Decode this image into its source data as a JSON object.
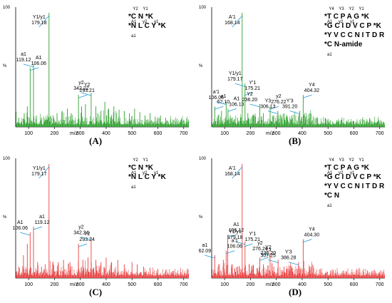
{
  "chart_data": [
    {
      "type": "line",
      "panel_label": "(A)",
      "color": "#2ea02e",
      "xlabel": "m/z",
      "ylabel": "%",
      "xlim": [
        50,
        720
      ],
      "ylim": [
        0,
        100
      ],
      "xticks": [
        "100",
        "200",
        "300",
        "400",
        "500",
        "600",
        "700"
      ],
      "corner_text": "100",
      "sequence_lines": [
        "*C N *K",
        "*N L C Y *K"
      ],
      "ion_labels_top": [
        "Y2",
        "Y1"
      ],
      "ion_labels_mid": [
        "A1",
        "y2",
        "y1"
      ],
      "ion_labels_bottom": [
        "a1"
      ],
      "peaks": [
        [
          62,
          8
        ],
        [
          83,
          12
        ],
        [
          95,
          18
        ],
        [
          106,
          52
        ],
        [
          119,
          55
        ],
        [
          130,
          10
        ],
        [
          150,
          8
        ],
        [
          164,
          6
        ],
        [
          179,
          100
        ],
        [
          195,
          10
        ],
        [
          210,
          12
        ],
        [
          230,
          14
        ],
        [
          250,
          16
        ],
        [
          265,
          12
        ],
        [
          293,
          28
        ],
        [
          305,
          18
        ],
        [
          320,
          20
        ],
        [
          342,
          30
        ],
        [
          360,
          18
        ],
        [
          380,
          14
        ],
        [
          395,
          22
        ],
        [
          410,
          16
        ],
        [
          430,
          18
        ],
        [
          450,
          15
        ],
        [
          470,
          14
        ],
        [
          490,
          12
        ],
        [
          510,
          16
        ],
        [
          530,
          13
        ],
        [
          550,
          10
        ],
        [
          570,
          12
        ],
        [
          590,
          9
        ],
        [
          610,
          10
        ],
        [
          630,
          8
        ],
        [
          650,
          7
        ],
        [
          670,
          6
        ],
        [
          690,
          5
        ]
      ],
      "annotations": [
        {
          "name": "a1",
          "value": "119.12",
          "x": 119,
          "y": 55
        },
        {
          "name": "A1",
          "value": "106.06",
          "x": 106,
          "y": 52
        },
        {
          "name": "Y1/y1",
          "value": "179.18",
          "x": 179,
          "y": 100
        },
        {
          "name": "Y2",
          "value": "293.21",
          "x": 293,
          "y": 28
        },
        {
          "name": "y2",
          "value": "342.22",
          "x": 342,
          "y": 30
        }
      ]
    },
    {
      "type": "line",
      "panel_label": "(B)",
      "color": "#2ea02e",
      "xlabel": "m/z",
      "ylabel": "%",
      "xlim": [
        50,
        720
      ],
      "ylim": [
        0,
        100
      ],
      "xticks": [
        "100",
        "200",
        "300",
        "400",
        "500",
        "600",
        "700"
      ],
      "corner_text": "100",
      "sequence_lines": [
        "*T C P A G *K",
        "*G C I D V C P *K",
        "*Y V C C N I T D R",
        "*C N-amide"
      ],
      "ion_labels_top": [
        "Y4",
        "Y3",
        "Y2",
        "Y1"
      ],
      "ion_labels_mid": [
        "A1",
        "y2",
        "y1"
      ],
      "ion_labels_bottom": [
        "a1"
      ],
      "peaks": [
        [
          62,
          18
        ],
        [
          75,
          10
        ],
        [
          88,
          14
        ],
        [
          106,
          22
        ],
        [
          113,
          16
        ],
        [
          122,
          10
        ],
        [
          150,
          8
        ],
        [
          168,
          100
        ],
        [
          179,
          38
        ],
        [
          190,
          12
        ],
        [
          210,
          10
        ],
        [
          236,
          20
        ],
        [
          250,
          12
        ],
        [
          276,
          18
        ],
        [
          290,
          10
        ],
        [
          306,
          14
        ],
        [
          330,
          12
        ],
        [
          360,
          10
        ],
        [
          391,
          14
        ],
        [
          404,
          28
        ],
        [
          430,
          12
        ],
        [
          460,
          8
        ],
        [
          500,
          7
        ],
        [
          550,
          6
        ],
        [
          600,
          5
        ],
        [
          650,
          4
        ],
        [
          690,
          4
        ]
      ],
      "annotations": [
        {
          "name": "A'1",
          "value": "168.14",
          "x": 168,
          "y": 100
        },
        {
          "name": "a1",
          "value": "62.10",
          "x": 62,
          "y": 18
        },
        {
          "name": "a'1",
          "value": "106.06",
          "x": 106,
          "y": 22
        },
        {
          "name": "A1",
          "value": "106.13",
          "x": 113,
          "y": 16
        },
        {
          "name": "Y1/y1",
          "value": "179.17",
          "x": 179,
          "y": 38
        },
        {
          "name": "Y'1",
          "value": "175.21",
          "x": 175,
          "y": 30
        },
        {
          "name": "Y2",
          "value": "236.20",
          "x": 236,
          "y": 20
        },
        {
          "name": "y2",
          "value": "276.22",
          "x": 276,
          "y": 18
        },
        {
          "name": "Y3",
          "value": "306.13",
          "x": 306,
          "y": 14
        },
        {
          "name": "Y4",
          "value": "404.32",
          "x": 404,
          "y": 28
        },
        {
          "name": "Y'3",
          "value": "391.20",
          "x": 391,
          "y": 14
        }
      ]
    },
    {
      "type": "line",
      "panel_label": "(C)",
      "color": "#e84040",
      "xlabel": "m/z",
      "ylabel": "%",
      "xlim": [
        50,
        720
      ],
      "ylim": [
        0,
        100
      ],
      "xticks": [
        "100",
        "200",
        "300",
        "400",
        "500",
        "600",
        "700"
      ],
      "corner_text": "100",
      "sequence_lines": [
        "*C N *K",
        "*N L C Y *K"
      ],
      "ion_labels_top": [
        "Y2",
        "Y1"
      ],
      "ion_labels_mid": [
        "A1",
        "y2",
        "y1"
      ],
      "ion_labels_bottom": [
        "a1"
      ],
      "peaks": [
        [
          62,
          10
        ],
        [
          80,
          20
        ],
        [
          95,
          30
        ],
        [
          106,
          40
        ],
        [
          119,
          45
        ],
        [
          135,
          14
        ],
        [
          150,
          10
        ],
        [
          164,
          12
        ],
        [
          179,
          100
        ],
        [
          195,
          12
        ],
        [
          215,
          14
        ],
        [
          235,
          16
        ],
        [
          260,
          14
        ],
        [
          293,
          30
        ],
        [
          310,
          16
        ],
        [
          330,
          18
        ],
        [
          342,
          36
        ],
        [
          360,
          16
        ],
        [
          380,
          14
        ],
        [
          400,
          18
        ],
        [
          420,
          14
        ],
        [
          445,
          16
        ],
        [
          470,
          12
        ],
        [
          500,
          14
        ],
        [
          520,
          12
        ],
        [
          545,
          10
        ],
        [
          570,
          9
        ],
        [
          600,
          8
        ],
        [
          630,
          7
        ],
        [
          660,
          6
        ],
        [
          690,
          5
        ]
      ],
      "annotations": [
        {
          "name": "A1",
          "value": "106.06",
          "x": 106,
          "y": 40
        },
        {
          "name": "a1",
          "value": "119.12",
          "x": 119,
          "y": 45
        },
        {
          "name": "Y1/y1",
          "value": "179.17",
          "x": 179,
          "y": 100
        },
        {
          "name": "Y2",
          "value": "293.24",
          "x": 293,
          "y": 30
        },
        {
          "name": "y2",
          "value": "342.24",
          "x": 342,
          "y": 36
        }
      ]
    },
    {
      "type": "line",
      "panel_label": "(D)",
      "color": "#e84040",
      "xlabel": "m/z",
      "ylabel": "%",
      "xlim": [
        50,
        720
      ],
      "ylim": [
        0,
        100
      ],
      "xticks": [
        "100",
        "200",
        "300",
        "400",
        "500",
        "600",
        "700"
      ],
      "corner_text": "100",
      "sequence_lines": [
        "*T C P A G *K",
        "*G C I D V C P *K",
        "*Y V C C N I T D R",
        "*C N"
      ],
      "ion_labels_top": [
        "Y4",
        "Y3",
        "Y2",
        "Y1"
      ],
      "ion_labels_mid": [
        "A1",
        "y2",
        "y1"
      ],
      "ion_labels_bottom": [
        "a1"
      ],
      "peaks": [
        [
          62,
          20
        ],
        [
          80,
          12
        ],
        [
          95,
          16
        ],
        [
          106,
          24
        ],
        [
          112,
          38
        ],
        [
          130,
          12
        ],
        [
          150,
          10
        ],
        [
          168,
          100
        ],
        [
          179,
          32
        ],
        [
          195,
          12
        ],
        [
          210,
          10
        ],
        [
          236,
          18
        ],
        [
          250,
          12
        ],
        [
          276,
          22
        ],
        [
          290,
          10
        ],
        [
          307,
          16
        ],
        [
          330,
          10
        ],
        [
          360,
          10
        ],
        [
          386,
          14
        ],
        [
          404,
          34
        ],
        [
          430,
          10
        ],
        [
          470,
          8
        ],
        [
          520,
          7
        ],
        [
          570,
          6
        ],
        [
          620,
          5
        ],
        [
          670,
          4
        ],
        [
          700,
          4
        ]
      ],
      "annotations": [
        {
          "name": "A'1",
          "value": "168.14",
          "x": 168,
          "y": 100
        },
        {
          "name": "A1",
          "value": "106.12",
          "x": 112,
          "y": 38
        },
        {
          "name": "a1",
          "value": "62.09",
          "x": 62,
          "y": 20
        },
        {
          "name": "Y'1",
          "value": "175.21",
          "x": 175,
          "y": 30
        },
        {
          "name": "Y1/y1",
          "value": "179.18",
          "x": 179,
          "y": 32
        },
        {
          "name": "a'1",
          "value": "106.06",
          "x": 106,
          "y": 24
        },
        {
          "name": "y2",
          "value": "276.24",
          "x": 276,
          "y": 22
        },
        {
          "name": "Y2",
          "value": "236.20",
          "x": 236,
          "y": 18
        },
        {
          "name": "Y3",
          "value": "307.25",
          "x": 307,
          "y": 16
        },
        {
          "name": "Y4",
          "value": "404.30",
          "x": 404,
          "y": 34
        },
        {
          "name": "Y'3",
          "value": "386.28",
          "x": 386,
          "y": 14
        }
      ]
    }
  ]
}
